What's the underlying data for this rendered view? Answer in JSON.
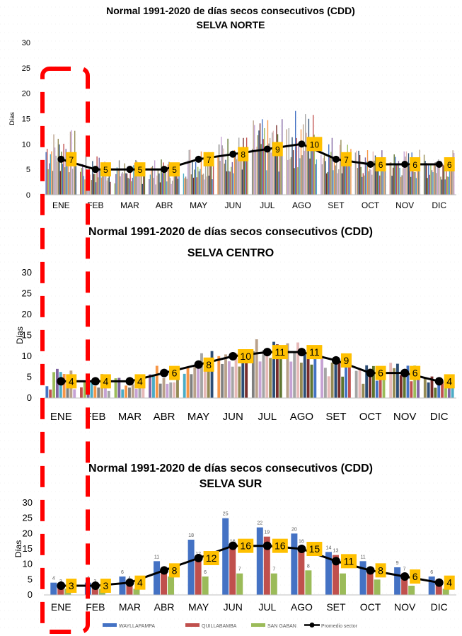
{
  "panels": [
    {
      "id": "norte",
      "title_line1": "Normal 1991-2020 de días secos consecutivos  (CDD)",
      "title_line2": "SELVA NORTE",
      "ylabel": "Días",
      "yticks": [
        "0",
        "5",
        "10",
        "15",
        "20",
        "25",
        "30"
      ],
      "months": [
        "ENE",
        "FEB",
        "MAR",
        "ABR",
        "MAY",
        "JUN",
        "JUL",
        "AGO",
        "SET",
        "OCT",
        "NOV",
        "DIC"
      ],
      "avg_labels": [
        "7",
        "5",
        "5",
        "5",
        "7",
        "8",
        "9",
        "10",
        "7",
        "6",
        "6",
        "6"
      ]
    },
    {
      "id": "centro",
      "title_line1": "Normal 1991-2020 de días secos consecutivos  (CDD)",
      "title_line2": "SELVA CENTRO",
      "ylabel": "Días",
      "yticks": [
        "0",
        "5",
        "10",
        "15",
        "20",
        "25",
        "30"
      ],
      "months": [
        "ENE",
        "FEB",
        "MAR",
        "ABR",
        "MAY",
        "JUN",
        "JUL",
        "AGO",
        "SET",
        "OCT",
        "NOV",
        "DIC"
      ],
      "avg_labels": [
        "4",
        "4",
        "4",
        "6",
        "8",
        "10",
        "11",
        "11",
        "9",
        "6",
        "6",
        "4"
      ]
    },
    {
      "id": "sur",
      "title_line1": "Normal 1991-2020 de días secos consecutivos  (CDD)",
      "title_line2": "SELVA SUR",
      "ylabel": "Días",
      "yticks": [
        "0",
        "5",
        "10",
        "15",
        "20",
        "25",
        "30"
      ],
      "months": [
        "ENE",
        "FEB",
        "MAR",
        "ABR",
        "MAY",
        "JUN",
        "JUL",
        "AGO",
        "SET",
        "OCT",
        "NOV",
        "DIC"
      ],
      "avg_labels": [
        "3",
        "3",
        "4",
        "8",
        "12",
        "16",
        "16",
        "15",
        "11",
        "8",
        "6",
        "4"
      ],
      "legend": [
        "WAYLLAPAMPA",
        "QUILLABAMBA",
        "SAN GABAN",
        "Promedio sector"
      ]
    }
  ],
  "colors": {
    "wayllapampa": "#4472C4",
    "quillabamba": "#C0504D",
    "sangaban": "#9BBB59",
    "average_line": "#000000",
    "label_box": "#FFC000",
    "highlight": "#FF0000"
  },
  "chart_data": [
    {
      "type": "bar",
      "title": "Normal 1991-2020 de días secos consecutivos  (CDD) SELVA NORTE",
      "ylabel": "Días",
      "ylim": [
        0,
        30
      ],
      "categories": [
        "ENE",
        "FEB",
        "MAR",
        "ABR",
        "MAY",
        "JUN",
        "JUL",
        "AGO",
        "SET",
        "OCT",
        "NOV",
        "DIC"
      ],
      "station_bar_range": [
        [
          4,
          13
        ],
        [
          2,
          8
        ],
        [
          2,
          7
        ],
        [
          2,
          7
        ],
        [
          3,
          10
        ],
        [
          4,
          12
        ],
        [
          4,
          15
        ],
        [
          5,
          17
        ],
        [
          4,
          12
        ],
        [
          3,
          9
        ],
        [
          3,
          9
        ],
        [
          3,
          9
        ]
      ],
      "series": [
        {
          "name": "Promedio sector",
          "type": "line",
          "values": [
            7,
            5,
            5,
            5,
            7,
            8,
            9,
            10,
            7,
            6,
            6,
            6
          ]
        }
      ]
    },
    {
      "type": "bar",
      "title": "Normal 1991-2020 de días secos consecutivos  (CDD) SELVA CENTRO",
      "ylabel": "Días",
      "ylim": [
        0,
        30
      ],
      "categories": [
        "ENE",
        "FEB",
        "MAR",
        "ABR",
        "MAY",
        "JUN",
        "JUL",
        "AGO",
        "SET",
        "OCT",
        "NOV",
        "DIC"
      ],
      "station_bar_range": [
        [
          2,
          7
        ],
        [
          1,
          6
        ],
        [
          2,
          6
        ],
        [
          3,
          8
        ],
        [
          5,
          12
        ],
        [
          6,
          12
        ],
        [
          8,
          15
        ],
        [
          8,
          15
        ],
        [
          5,
          12
        ],
        [
          3,
          8
        ],
        [
          3,
          9
        ],
        [
          2,
          7
        ]
      ],
      "series": [
        {
          "name": "Promedio sector",
          "type": "line",
          "values": [
            4,
            4,
            4,
            6,
            8,
            10,
            11,
            11,
            9,
            6,
            6,
            4
          ]
        }
      ]
    },
    {
      "type": "bar",
      "title": "Normal 1991-2020 de días secos consecutivos  (CDD) SELVA SUR",
      "ylabel": "Días",
      "ylim": [
        0,
        30
      ],
      "categories": [
        "ENE",
        "FEB",
        "MAR",
        "ABR",
        "MAY",
        "JUN",
        "JUL",
        "AGO",
        "SET",
        "OCT",
        "NOV",
        "DIC"
      ],
      "series": [
        {
          "name": "WAYLLAPAMPA",
          "values": [
            4,
            4,
            6,
            11,
            18,
            25,
            22,
            20,
            14,
            11,
            9,
            6
          ]
        },
        {
          "name": "QUILLABAMBA",
          "values": [
            3,
            3,
            4,
            8,
            12,
            16,
            19,
            16,
            13,
            8,
            7,
            5
          ]
        },
        {
          "name": "SAN GABAN",
          "values": [
            2,
            2,
            2,
            6,
            6,
            7,
            7,
            8,
            7,
            5,
            3,
            2
          ]
        },
        {
          "name": "Promedio sector",
          "type": "line",
          "values": [
            3,
            3,
            4,
            8,
            12,
            16,
            16,
            15,
            11,
            8,
            6,
            4
          ]
        }
      ],
      "data_labels": {
        "WAYLLAPAMPA": [
          "4",
          "4",
          "6",
          "11",
          "18",
          "25",
          "22",
          "20",
          "14",
          "11",
          "9",
          "6"
        ],
        "QUILLABAMBA": [
          "3",
          "3",
          "4",
          "",
          "12",
          "16",
          "19",
          "16",
          "13",
          "",
          "7",
          ""
        ],
        "SAN GABAN": [
          "",
          "",
          "",
          "",
          "6",
          "7",
          "7",
          "8",
          "",
          "",
          "",
          ""
        ]
      },
      "legend_position": "bottom"
    }
  ]
}
